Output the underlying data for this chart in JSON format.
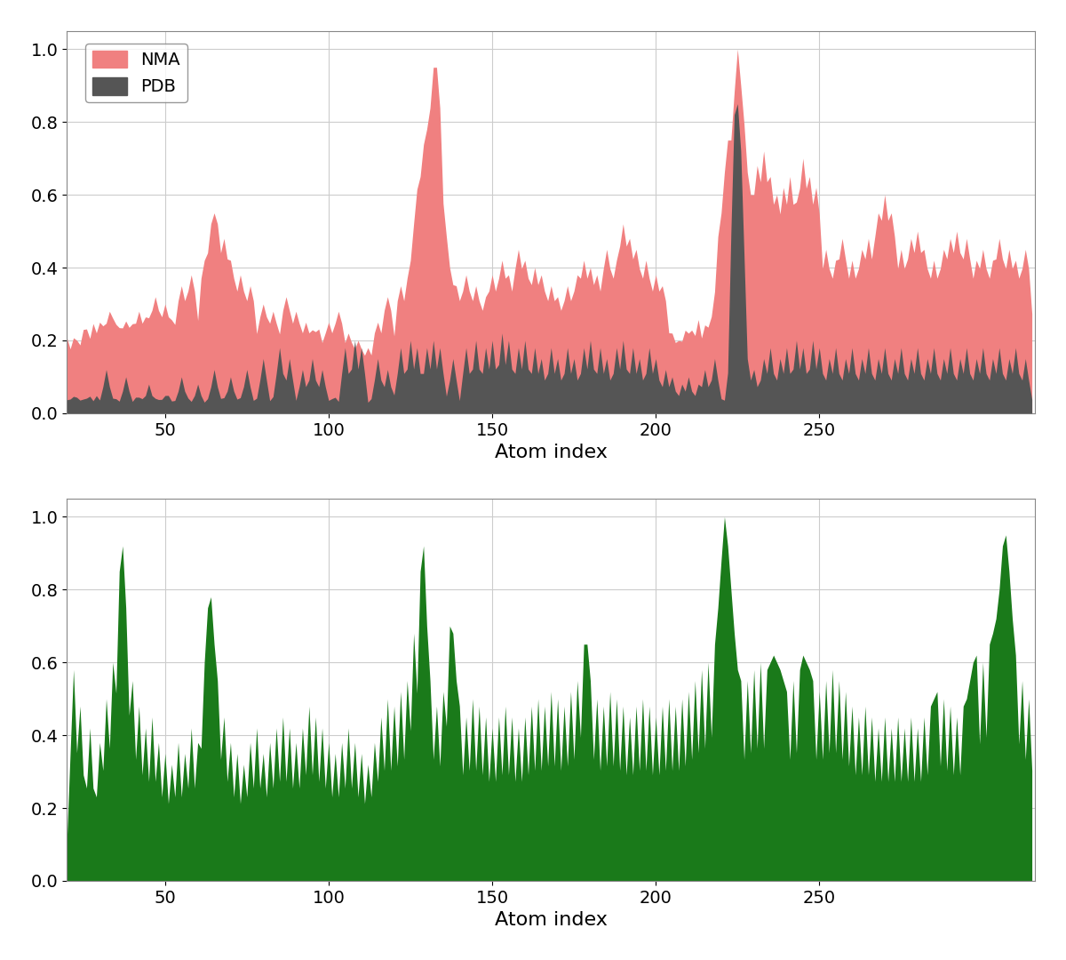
{
  "nma_color": "#F08080",
  "pdb_color": "#555555",
  "green_color": "#1a7a1a",
  "xlabel": "Atom index",
  "ylim": [
    0,
    1.05
  ],
  "xlim": [
    20,
    316
  ],
  "xticks": [
    50,
    100,
    150,
    200,
    250
  ],
  "yticks": [
    0,
    0.2,
    0.4,
    0.6,
    0.8,
    1
  ],
  "grid_color": "#cccccc",
  "legend_labels": [
    "NMA",
    "PDB"
  ],
  "xlabel_fontsize": 16,
  "tick_fontsize": 14,
  "legend_fontsize": 14,
  "fig_bg": "#ffffff",
  "ax_bg": "#ffffff"
}
